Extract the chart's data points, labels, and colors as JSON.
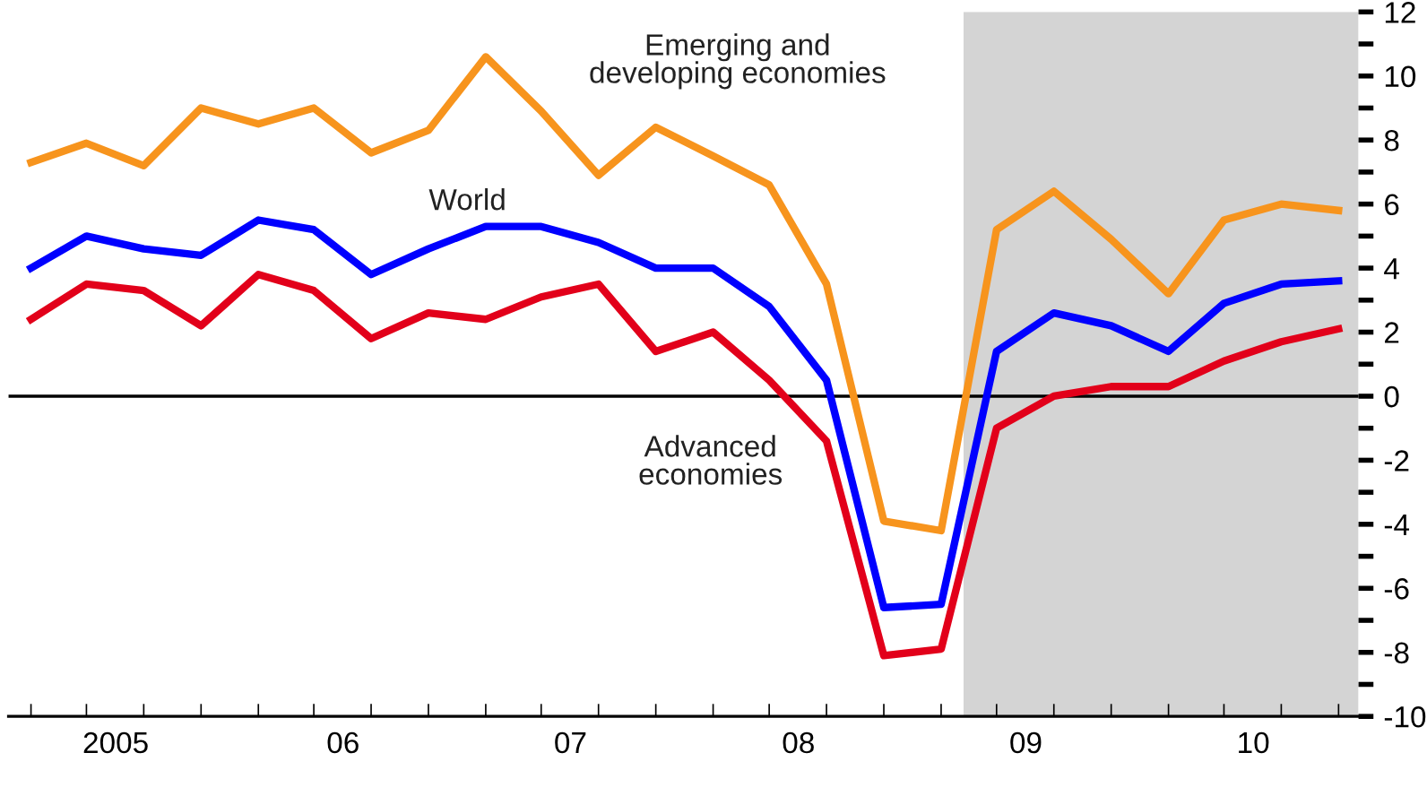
{
  "chart_data": {
    "type": "line",
    "x": [
      "2005-02-15",
      "2005-05-15",
      "2005-08-15",
      "2005-11-15",
      "2006-02-15",
      "2006-05-15",
      "2006-08-15",
      "2006-11-15",
      "2007-02-15",
      "2007-05-15",
      "2007-08-15",
      "2007-11-15",
      "2008-02-15",
      "2008-05-15",
      "2008-08-15",
      "2008-11-15",
      "2009-02-15",
      "2009-05-15",
      "2009-08-15",
      "2009-11-15",
      "2010-02-15",
      "2010-05-15",
      "2010-08-15",
      "2010-11-15"
    ],
    "series": [
      {
        "name": "Emerging and\ndeveloping economies",
        "color": "#f7941d",
        "values": [
          7.3,
          7.9,
          7.2,
          9.0,
          8.5,
          9.0,
          7.6,
          8.3,
          10.6,
          8.9,
          6.9,
          8.4,
          7.5,
          6.6,
          3.5,
          -3.9,
          -4.2,
          5.2,
          6.4,
          4.9,
          3.2,
          5.5,
          6.0,
          5.8
        ]
      },
      {
        "name": "World",
        "color": "#0000ff",
        "values": [
          4.0,
          5.0,
          4.6,
          4.4,
          5.5,
          5.2,
          3.8,
          4.6,
          5.3,
          5.3,
          4.8,
          4.0,
          4.0,
          2.8,
          0.5,
          -6.6,
          -6.5,
          1.4,
          2.6,
          2.2,
          1.4,
          2.9,
          3.5,
          3.6
        ]
      },
      {
        "name": "Advanced\neconomies",
        "color": "#e2001a",
        "values": [
          2.4,
          3.5,
          3.3,
          2.2,
          3.8,
          3.3,
          1.8,
          2.6,
          2.4,
          3.1,
          3.5,
          1.4,
          2.0,
          0.5,
          -1.4,
          -8.1,
          -7.9,
          -1.0,
          0.0,
          0.3,
          0.3,
          1.1,
          1.7,
          2.1
        ]
      }
    ],
    "xlim": [
      "2005-01-10",
      "2010-12-17"
    ],
    "xticks": [
      {
        "value": "2005-07-01",
        "label": "2005"
      },
      {
        "value": "2006-07-01",
        "label": "06"
      },
      {
        "value": "2007-07-01",
        "label": "07"
      },
      {
        "value": "2008-07-01",
        "label": "08"
      },
      {
        "value": "2009-07-01",
        "label": "09"
      },
      {
        "value": "2010-07-01",
        "label": "10"
      }
    ],
    "ylim": [
      -10,
      12
    ],
    "yticks": [
      -10,
      -8,
      -6,
      -4,
      -2,
      0,
      2,
      4,
      6,
      8,
      10,
      12
    ],
    "ref_lines": [
      {
        "axis": "y",
        "value": 0,
        "color": "#000000"
      }
    ],
    "bands": [
      {
        "axis": "x",
        "from": "2009-03-23",
        "to": "2010-12-17",
        "color": "#d4d4d4"
      }
    ],
    "grid": false,
    "legend": false,
    "marker": "none",
    "line_style": "solid"
  }
}
